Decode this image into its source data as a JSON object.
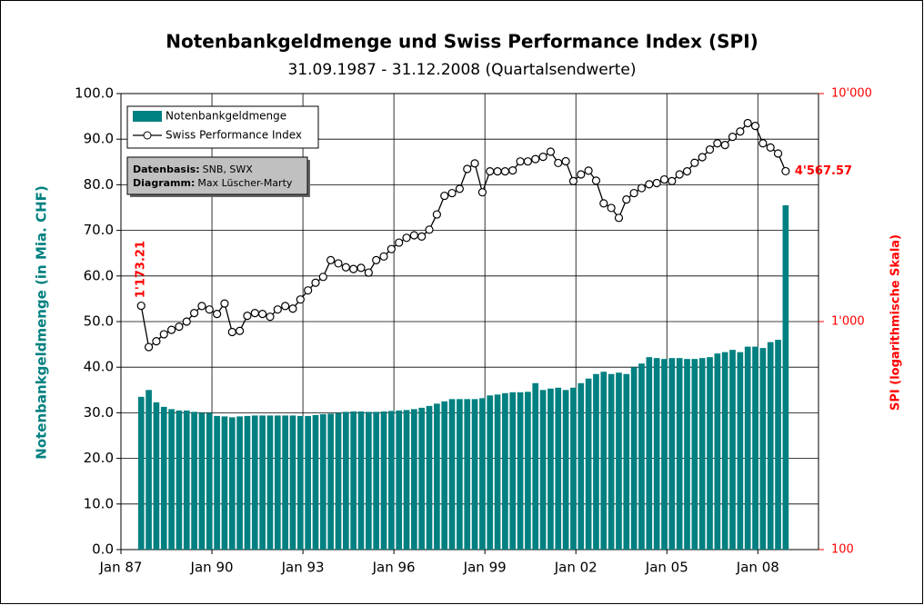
{
  "chart_data": {
    "type": "bar_line",
    "title": "Notenbankgeldmenge und Swiss Performance Index (SPI)",
    "subtitle": "31.09.1987 - 31.12.2008 (Quartalsendwerte)",
    "y_label": "Notenbankgeldmenge (in Mia. CHF)",
    "y2_label": "SPI (logarithmische Skala)",
    "x": [
      "1987-09",
      "1987-12",
      "1988-03",
      "1988-06",
      "1988-09",
      "1988-12",
      "1989-03",
      "1989-06",
      "1989-09",
      "1989-12",
      "1990-03",
      "1990-06",
      "1990-09",
      "1990-12",
      "1991-03",
      "1991-06",
      "1991-09",
      "1991-12",
      "1992-03",
      "1992-06",
      "1992-09",
      "1992-12",
      "1993-03",
      "1993-06",
      "1993-09",
      "1993-12",
      "1994-03",
      "1994-06",
      "1994-09",
      "1994-12",
      "1995-03",
      "1995-06",
      "1995-09",
      "1995-12",
      "1996-03",
      "1996-06",
      "1996-09",
      "1996-12",
      "1997-03",
      "1997-06",
      "1997-09",
      "1997-12",
      "1998-03",
      "1998-06",
      "1998-09",
      "1998-12",
      "1999-03",
      "1999-06",
      "1999-09",
      "1999-12",
      "2000-03",
      "2000-06",
      "2000-09",
      "2000-12",
      "2001-03",
      "2001-06",
      "2001-09",
      "2001-12",
      "2002-03",
      "2002-06",
      "2002-09",
      "2002-12",
      "2003-03",
      "2003-06",
      "2003-09",
      "2003-12",
      "2004-03",
      "2004-06",
      "2004-09",
      "2004-12",
      "2005-03",
      "2005-06",
      "2005-09",
      "2005-12",
      "2006-03",
      "2006-06",
      "2006-09",
      "2006-12",
      "2007-03",
      "2007-06",
      "2007-09",
      "2007-12",
      "2008-03",
      "2008-06",
      "2008-09",
      "2008-12"
    ],
    "series": [
      {
        "name": "Notenbankgeldmenge",
        "color": "#008080",
        "kind": "bar",
        "axis": "y",
        "values": [
          33.5,
          35.0,
          32.3,
          31.3,
          30.8,
          30.5,
          30.5,
          30.2,
          30.0,
          30.0,
          29.3,
          29.2,
          29.0,
          29.2,
          29.3,
          29.4,
          29.4,
          29.4,
          29.4,
          29.4,
          29.4,
          29.3,
          29.3,
          29.5,
          29.7,
          29.8,
          30.0,
          30.2,
          30.3,
          30.3,
          30.2,
          30.2,
          30.3,
          30.4,
          30.5,
          30.6,
          30.8,
          31.1,
          31.5,
          32.0,
          32.5,
          33.0,
          33.0,
          33.0,
          33.0,
          33.2,
          33.8,
          34.0,
          34.3,
          34.5,
          34.5,
          34.6,
          36.5,
          35.0,
          35.3,
          35.5,
          35.0,
          35.5,
          36.5,
          37.5,
          38.5,
          39.0,
          38.5,
          38.8,
          38.5,
          40.0,
          40.8,
          42.2,
          42.0,
          41.8,
          42.0,
          42.0,
          41.8,
          41.8,
          42.0,
          42.2,
          43.0,
          43.3,
          43.8,
          43.3,
          44.5,
          44.5,
          44.2,
          45.5,
          46.0,
          75.5
        ]
      },
      {
        "name": "Swiss Performance Index",
        "color": "#000000",
        "kind": "line",
        "axis": "y2",
        "values": [
          1173.21,
          773,
          820,
          880,
          920,
          950,
          1000,
          1090,
          1170,
          1130,
          1080,
          1200,
          900,
          910,
          1060,
          1090,
          1080,
          1050,
          1130,
          1170,
          1140,
          1250,
          1370,
          1480,
          1570,
          1860,
          1800,
          1730,
          1700,
          1720,
          1640,
          1860,
          1930,
          2080,
          2220,
          2330,
          2390,
          2360,
          2530,
          2950,
          3560,
          3660,
          3820,
          4670,
          4940,
          3690,
          4560,
          4560,
          4560,
          4600,
          5040,
          5040,
          5160,
          5280,
          5560,
          4960,
          5050,
          4130,
          4420,
          4590,
          4150,
          3300,
          3150,
          2850,
          3430,
          3660,
          3850,
          4000,
          4050,
          4200,
          4130,
          4420,
          4560,
          4970,
          5260,
          5680,
          6050,
          5950,
          6460,
          6820,
          7420,
          7210,
          6050,
          5800,
          5460,
          4567.57
        ]
      }
    ],
    "xlim": [
      "1987-01",
      "2010-01"
    ],
    "xticks": [
      {
        "value": "1987-01",
        "label": "Jan 87"
      },
      {
        "value": "1990-01",
        "label": "Jan 90"
      },
      {
        "value": "1993-01",
        "label": "Jan 93"
      },
      {
        "value": "1996-01",
        "label": "Jan 96"
      },
      {
        "value": "1999-01",
        "label": "Jan 99"
      },
      {
        "value": "2002-01",
        "label": "Jan 02"
      },
      {
        "value": "2005-01",
        "label": "Jan 05"
      },
      {
        "value": "2008-01",
        "label": "Jan 08"
      }
    ],
    "ylim": [
      0,
      100
    ],
    "yticks": [
      {
        "value": 0,
        "label": "0.0"
      },
      {
        "value": 10,
        "label": "10.0"
      },
      {
        "value": 20,
        "label": "20.0"
      },
      {
        "value": 30,
        "label": "30.0"
      },
      {
        "value": 40,
        "label": "40.0"
      },
      {
        "value": 50,
        "label": "50.0"
      },
      {
        "value": 60,
        "label": "60.0"
      },
      {
        "value": 70,
        "label": "70.0"
      },
      {
        "value": 80,
        "label": "80.0"
      },
      {
        "value": 90,
        "label": "90.0"
      },
      {
        "value": 100,
        "label": "100.0"
      }
    ],
    "y2lim": [
      100,
      10000
    ],
    "y2ticks": [
      100,
      {
        "value": 1000,
        "label": "1'000"
      },
      {
        "value": 10000,
        "label": "10'000"
      }
    ],
    "y2log": true,
    "grid": true,
    "legend": "upper left",
    "annotations": [
      {
        "text": "1'173.21",
        "point": 0,
        "color": "#ff0000"
      },
      {
        "text": "4'567.57",
        "point": 85,
        "color": "#ff0000"
      }
    ],
    "info": [
      {
        "label": "Datenbasis:",
        "text": "SNB, SWX"
      },
      {
        "label": "Diagramm:",
        "text": "Max Lüscher-Marty"
      }
    ]
  }
}
